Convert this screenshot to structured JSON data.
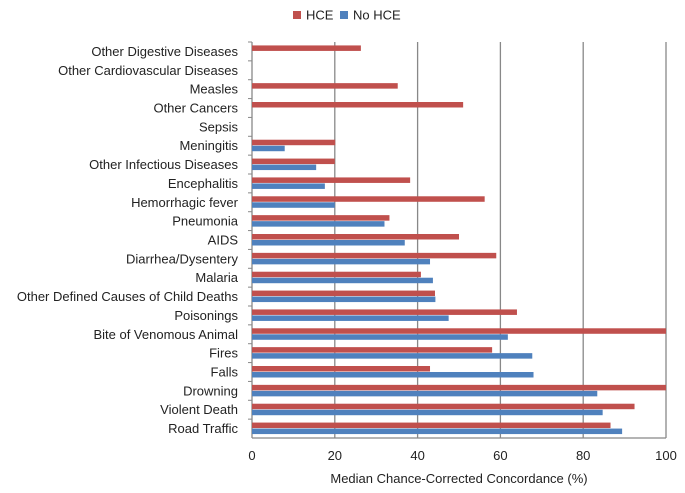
{
  "chart_data": {
    "type": "bar",
    "orientation": "horizontal",
    "xlabel": "Median Chance-Corrected Concordance (%)",
    "xlim": [
      0,
      100
    ],
    "xticks": [
      0,
      20,
      40,
      60,
      80,
      100
    ],
    "grid": true,
    "legend_position": "top",
    "categories": [
      "Other Digestive Diseases",
      "Other Cardiovascular Diseases",
      "Measles",
      "Other Cancers",
      "Sepsis",
      "Meningitis",
      "Other Infectious Diseases",
      "Encephalitis",
      "Hemorrhagic fever",
      "Pneumonia",
      "AIDS",
      "Diarrhea/Dysentery",
      "Malaria",
      "Other Defined Causes of Child Deaths",
      "Poisonings",
      "Bite of Venomous Animal",
      "Fires",
      "Falls",
      "Drowning",
      "Violent Death",
      "Road Traffic"
    ],
    "series": [
      {
        "name": "HCE",
        "color": "#c0504d",
        "values": [
          26.3,
          null,
          35.2,
          51.0,
          null,
          20.1,
          20.0,
          38.2,
          56.2,
          33.2,
          50.0,
          59.0,
          40.8,
          44.2,
          64.0,
          100,
          58.0,
          43.0,
          100,
          92.4,
          86.6
        ]
      },
      {
        "name": "No HCE",
        "color": "#4f81bd",
        "values": [
          null,
          null,
          null,
          null,
          null,
          7.9,
          15.5,
          17.6,
          20.0,
          32.0,
          36.9,
          43.0,
          43.7,
          44.3,
          47.5,
          61.8,
          67.7,
          68.0,
          83.4,
          84.7,
          89.4
        ]
      }
    ]
  }
}
